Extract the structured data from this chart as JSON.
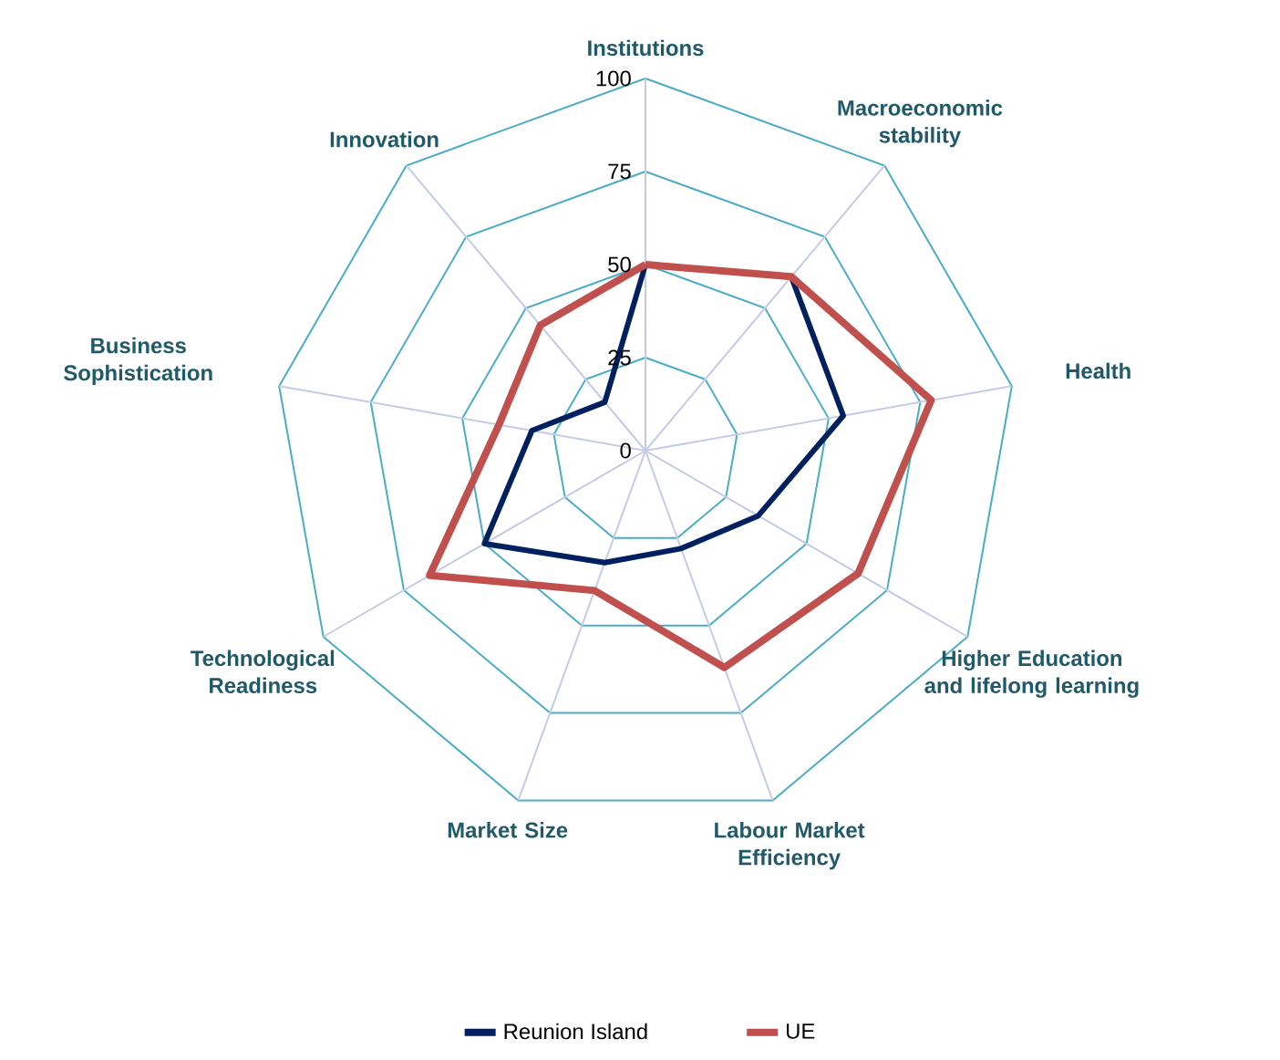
{
  "chart_data": {
    "type": "radar",
    "categories": [
      "Institutions",
      "Macroeconomic stability",
      "Health",
      "Higher Education and lifelong learning",
      "Labour Market Efficiency",
      "Market Size",
      "Technological Readiness",
      "Business Sophistication",
      "Innovation"
    ],
    "series": [
      {
        "name": "Reunion Island",
        "color": "#002060",
        "values": [
          50,
          61,
          54,
          35,
          28,
          32,
          50,
          31,
          17
        ]
      },
      {
        "name": "UE",
        "color": "#c0504d",
        "values": [
          50,
          61,
          78,
          66,
          62,
          40,
          67,
          40,
          44
        ]
      }
    ],
    "ylim": [
      0,
      100
    ],
    "yticks": [
      0,
      25,
      50,
      75,
      100
    ],
    "grid": true,
    "legend": "bottom"
  }
}
